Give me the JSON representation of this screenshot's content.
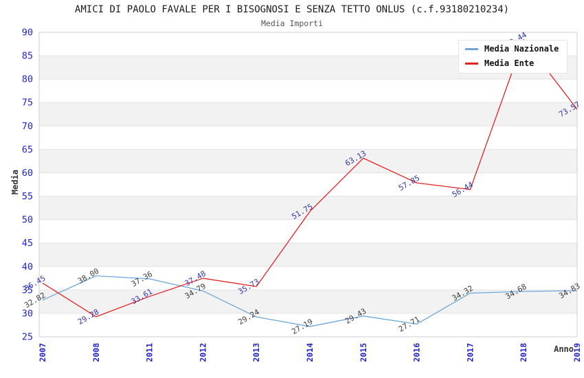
{
  "header": {
    "title": "AMICI DI PAOLO FAVALE PER I BISOGNOSI E SENZA TETTO ONLUS (c.f.93180210234)",
    "subtitle": "Media Importi"
  },
  "legend": {
    "items": [
      {
        "label": "Media Nazionale",
        "color": "#6ca6dc"
      },
      {
        "label": "Media Ente",
        "color": "#e32222"
      }
    ]
  },
  "axes": {
    "y_title": "Media",
    "x_title": "Anno"
  },
  "colors": {
    "tick_text": "#2323ce",
    "band_fill": "#f2f2f2",
    "grid_line": "#e3e3e3",
    "plot_border": "#cfcfcf"
  },
  "chart_data": {
    "type": "line",
    "title": "AMICI DI PAOLO FAVALE PER I BISOGNOSI E SENZA TETTO ONLUS (c.f.93180210234)",
    "subtitle": "Media Importi",
    "xlabel": "Anno",
    "ylabel": "Media",
    "categories": [
      "2007",
      "2008",
      "2011",
      "2012",
      "2013",
      "2014",
      "2015",
      "2016",
      "2017",
      "2018",
      "2019"
    ],
    "series": [
      {
        "name": "Media Nazionale",
        "color": "#6ca6dc",
        "label_color": "#3c3c3c",
        "values": [
          32.82,
          38.0,
          37.36,
          34.79,
          29.24,
          27.19,
          29.43,
          27.71,
          34.32,
          34.68,
          34.83
        ]
      },
      {
        "name": "Media Ente",
        "color": "#e32222",
        "label_color": "#3434a8",
        "values": [
          36.45,
          29.28,
          33.61,
          37.48,
          35.73,
          51.75,
          63.13,
          57.85,
          56.44,
          88.44,
          73.57
        ]
      }
    ],
    "ylim": [
      25,
      90
    ],
    "ytick_step": 5,
    "grid": true,
    "banded_background": true,
    "legend_position": "top-right",
    "data_labels": true
  }
}
